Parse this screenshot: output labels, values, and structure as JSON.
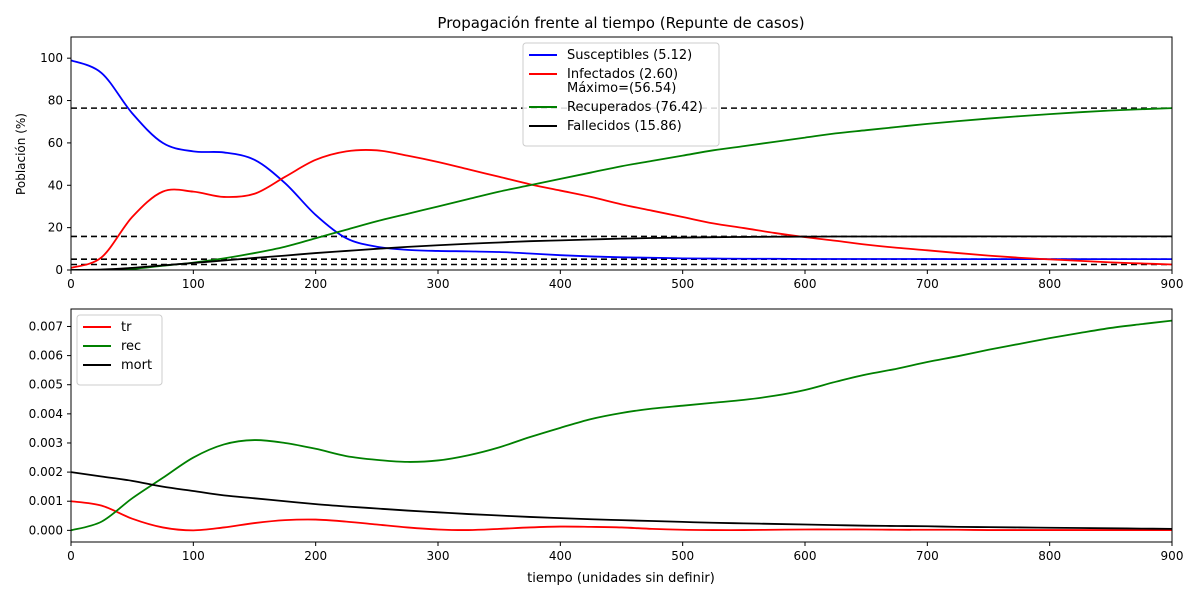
{
  "chart_data": [
    {
      "type": "line",
      "title": "Propagación frente al tiempo (Repunte de casos)",
      "xlabel": "",
      "ylabel": "Población (%)",
      "xlim": [
        0,
        900
      ],
      "ylim": [
        0,
        110
      ],
      "xticks": [
        0,
        100,
        200,
        300,
        400,
        500,
        600,
        700,
        800,
        900
      ],
      "yticks": [
        0,
        20,
        40,
        60,
        80,
        100
      ],
      "grid": false,
      "legend_placement": "top-center",
      "x": [
        0,
        25,
        50,
        75,
        100,
        125,
        150,
        175,
        200,
        225,
        250,
        275,
        300,
        325,
        350,
        375,
        400,
        425,
        450,
        475,
        500,
        525,
        550,
        575,
        600,
        625,
        650,
        675,
        700,
        725,
        750,
        775,
        800,
        825,
        850,
        875,
        900
      ],
      "series": [
        {
          "name": "Susceptibles (5.12)",
          "color": "#0000ff",
          "values": [
            99,
            93,
            74,
            60,
            56,
            55.5,
            52,
            41,
            26,
            15,
            11,
            9.5,
            9,
            8.8,
            8.5,
            7.8,
            7,
            6.4,
            6,
            5.8,
            5.5,
            5.4,
            5.3,
            5.3,
            5.2,
            5.2,
            5.2,
            5.2,
            5.2,
            5.15,
            5.15,
            5.15,
            5.12,
            5.12,
            5.12,
            5.12,
            5.12
          ]
        },
        {
          "name": "Infectados (2.60)\nMáximo=(56.54)",
          "color": "#ff0000",
          "values": [
            1,
            6,
            25,
            37,
            37,
            34.5,
            36,
            44,
            52,
            56,
            56.5,
            54,
            51,
            47.5,
            44,
            40.5,
            37.5,
            34.5,
            31,
            28,
            25,
            22,
            19.8,
            17.5,
            15.5,
            13.8,
            12,
            10.5,
            9.3,
            8,
            6.8,
            5.8,
            5,
            4.3,
            3.6,
            3.1,
            2.6
          ]
        },
        {
          "name": "Recuperados (76.42)",
          "color": "#008000",
          "values": [
            0,
            0,
            0.5,
            2,
            3.5,
            5.5,
            8,
            11,
            15,
            19,
            23,
            26.5,
            30,
            33.5,
            37,
            40,
            43,
            46,
            49,
            51.5,
            54,
            56.5,
            58.5,
            60.5,
            62.5,
            64.5,
            66,
            67.5,
            69,
            70.3,
            71.5,
            72.6,
            73.6,
            74.5,
            75.3,
            75.9,
            76.42
          ]
        },
        {
          "name": "Fallecidos (15.86)",
          "color": "#000000",
          "values": [
            0,
            0.2,
            1,
            2.2,
            3.3,
            4.5,
            5.7,
            6.8,
            8,
            9,
            10,
            10.9,
            11.7,
            12.4,
            13,
            13.6,
            14,
            14.4,
            14.8,
            15.1,
            15.3,
            15.5,
            15.6,
            15.7,
            15.75,
            15.8,
            15.8,
            15.83,
            15.85,
            15.85,
            15.86,
            15.86,
            15.86,
            15.86,
            15.86,
            15.86,
            15.86
          ]
        }
      ],
      "reference_lines": [
        76.42,
        15.86,
        5.12,
        2.6
      ]
    },
    {
      "type": "line",
      "title": "",
      "xlabel": "tiempo (unidades sin definir)",
      "ylabel": "",
      "xlim": [
        0,
        900
      ],
      "ylim": [
        -0.0004,
        0.0076
      ],
      "xticks": [
        0,
        100,
        200,
        300,
        400,
        500,
        600,
        700,
        800,
        900
      ],
      "yticks": [
        0.0,
        0.001,
        0.002,
        0.003,
        0.004,
        0.005,
        0.006,
        0.007
      ],
      "ytick_labels": [
        "0.000",
        "0.001",
        "0.002",
        "0.003",
        "0.004",
        "0.005",
        "0.006",
        "0.007"
      ],
      "grid": false,
      "legend_placement": "top-left",
      "x": [
        0,
        25,
        50,
        75,
        100,
        125,
        150,
        175,
        200,
        225,
        250,
        275,
        300,
        325,
        350,
        375,
        400,
        425,
        450,
        475,
        500,
        525,
        550,
        575,
        600,
        625,
        650,
        675,
        700,
        725,
        750,
        775,
        800,
        825,
        850,
        875,
        900
      ],
      "series": [
        {
          "name": "tr",
          "color": "#ff0000",
          "values": [
            0.001,
            0.00085,
            0.0004,
            0.0001,
            0.0,
            0.0001,
            0.00025,
            0.00035,
            0.00037,
            0.0003,
            0.0002,
            0.0001,
            3e-05,
            1e-05,
            5e-05,
            0.0001,
            0.00013,
            0.00012,
            0.0001,
            5e-05,
            2e-05,
            1e-05,
            1e-05,
            2e-05,
            3e-05,
            3e-05,
            3e-05,
            2e-05,
            2e-05,
            2e-05,
            1e-05,
            1e-05,
            1e-05,
            1e-05,
            1e-05,
            1e-05,
            1e-05
          ]
        },
        {
          "name": "rec",
          "color": "#008000",
          "values": [
            0.0,
            0.0003,
            0.0011,
            0.0018,
            0.0025,
            0.00295,
            0.0031,
            0.003,
            0.0028,
            0.00255,
            0.00242,
            0.00235,
            0.0024,
            0.00258,
            0.00285,
            0.0032,
            0.00352,
            0.00382,
            0.00403,
            0.00418,
            0.00428,
            0.00438,
            0.00448,
            0.00462,
            0.00482,
            0.0051,
            0.00535,
            0.00555,
            0.00578,
            0.00598,
            0.0062,
            0.0064,
            0.0066,
            0.00678,
            0.00695,
            0.00708,
            0.0072
          ]
        },
        {
          "name": "mort",
          "color": "#000000",
          "values": [
            0.002,
            0.00185,
            0.0017,
            0.0015,
            0.00135,
            0.0012,
            0.0011,
            0.001,
            0.0009,
            0.00082,
            0.00075,
            0.00068,
            0.00062,
            0.00056,
            0.00051,
            0.00046,
            0.00042,
            0.00038,
            0.00035,
            0.00032,
            0.00029,
            0.00026,
            0.00024,
            0.00022,
            0.0002,
            0.00018,
            0.00016,
            0.00015,
            0.00014,
            0.00012,
            0.00011,
            0.0001,
            9e-05,
            8e-05,
            7e-05,
            6e-05,
            5e-05
          ]
        }
      ]
    }
  ]
}
